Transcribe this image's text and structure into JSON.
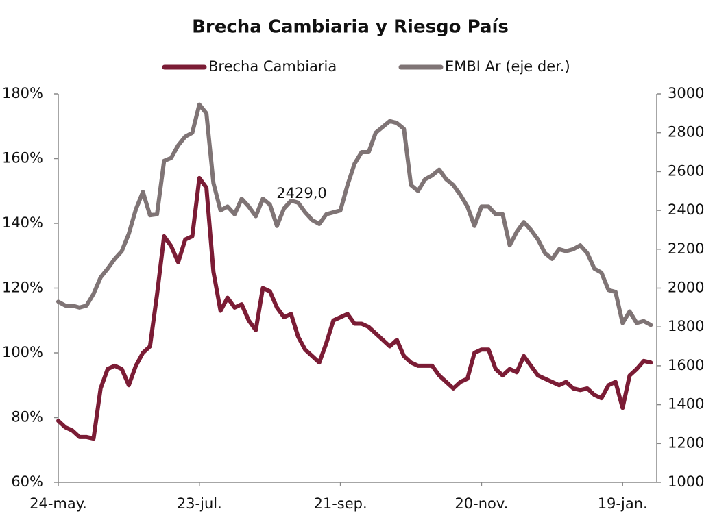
{
  "chart_data": {
    "type": "line",
    "title": "Brecha Cambiaria y Riesgo País",
    "annotations": [
      "2429,0"
    ],
    "legend": "top",
    "categories": [
      "24-may.",
      null,
      null,
      null,
      null,
      null,
      null,
      null,
      null,
      null,
      null,
      null,
      null,
      null,
      null,
      null,
      null,
      null,
      null,
      null,
      "23-jul.",
      null,
      null,
      null,
      null,
      null,
      null,
      null,
      null,
      null,
      null,
      null,
      null,
      null,
      null,
      null,
      null,
      null,
      null,
      null,
      "21-sep.",
      null,
      null,
      null,
      null,
      null,
      null,
      null,
      null,
      null,
      null,
      null,
      null,
      null,
      null,
      null,
      null,
      null,
      null,
      null,
      "20-nov.",
      null,
      null,
      null,
      null,
      null,
      null,
      null,
      null,
      null,
      null,
      null,
      null,
      null,
      null,
      null,
      null,
      null,
      null,
      null,
      "19-jan.",
      null,
      null,
      null,
      null
    ],
    "series": [
      {
        "name": "Brecha Cambiaria",
        "color": "#7b1c35",
        "values": [
          79,
          77,
          76,
          74,
          74,
          73.5,
          89,
          95,
          96,
          95,
          90,
          96,
          100,
          102,
          118,
          136,
          133,
          128,
          135,
          136,
          154,
          151,
          125,
          113,
          117,
          114,
          115,
          110,
          107,
          120,
          119,
          114,
          111,
          112,
          105,
          101,
          99,
          97,
          103,
          110,
          111,
          112,
          109,
          109,
          108,
          106,
          104,
          102,
          104,
          99,
          97,
          96,
          96,
          96,
          93,
          91,
          89,
          91,
          92,
          100,
          101,
          101,
          95,
          93,
          95,
          94,
          99,
          96,
          93,
          92,
          91,
          90,
          91,
          89,
          88.5,
          89,
          87,
          86,
          90,
          91,
          83,
          93,
          95,
          97.5,
          97
        ]
      },
      {
        "name": "EMBI Ar (eje der.)",
        "color": "#7f7475",
        "axis": "y2",
        "values": [
          1930,
          1910,
          1910,
          1900,
          1910,
          1970,
          2055,
          2100,
          2150,
          2190,
          2280,
          2405,
          2495,
          2375,
          2380,
          2655,
          2670,
          2735,
          2780,
          2800,
          2945,
          2900,
          2540,
          2400,
          2420,
          2380,
          2460,
          2420,
          2370,
          2460,
          2430,
          2320,
          2410,
          2450,
          2440,
          2390,
          2350,
          2330,
          2380,
          2390,
          2400,
          2530,
          2640,
          2700,
          2700,
          2800,
          2830,
          2860,
          2850,
          2820,
          2530,
          2500,
          2560,
          2580,
          2610,
          2560,
          2530,
          2480,
          2420,
          2320,
          2420,
          2420,
          2380,
          2380,
          2220,
          2290,
          2340,
          2300,
          2250,
          2180,
          2150,
          2200,
          2190,
          2200,
          2220,
          2180,
          2100,
          2080,
          1990,
          1980,
          1820,
          1880,
          1820,
          1830,
          1810
        ]
      }
    ],
    "ylim": [
      60,
      180
    ],
    "yticks": [
      {
        "value": 60,
        "label": "60%"
      },
      {
        "value": 80,
        "label": "80%"
      },
      {
        "value": 100,
        "label": "100%"
      },
      {
        "value": 120,
        "label": "120%"
      },
      {
        "value": 140,
        "label": "140%"
      },
      {
        "value": 160,
        "label": "160%"
      },
      {
        "value": 180,
        "label": "180%"
      }
    ],
    "y2lim": [
      1000,
      3000
    ],
    "y2ticks": [
      1000,
      1200,
      1400,
      1600,
      1800,
      2000,
      2200,
      2400,
      2600,
      2800,
      3000
    ]
  }
}
